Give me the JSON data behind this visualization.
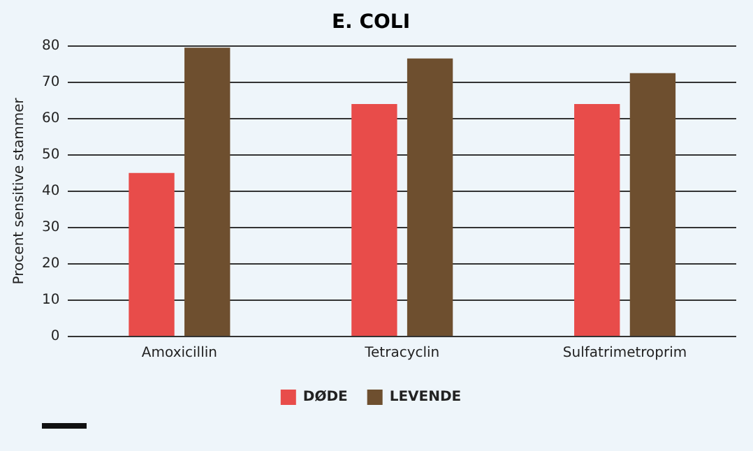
{
  "chart_data": {
    "type": "bar",
    "title": "E. COLI",
    "ylabel": "Procent sensitive stammer",
    "categories": [
      "Amoxicillin",
      "Tetracyclin",
      "Sulfatrimetroprim"
    ],
    "series": [
      {
        "name": "DØDE",
        "color": "#e84c4a",
        "values": [
          45,
          64,
          64
        ]
      },
      {
        "name": "LEVENDE",
        "color": "#6e4f2f",
        "values": [
          79.5,
          76.5,
          72.5
        ]
      }
    ],
    "ylim": [
      0,
      80
    ],
    "yticks": [
      0,
      10,
      20,
      30,
      40,
      50,
      60,
      70,
      80
    ],
    "grid": "y",
    "legend": "bottom"
  }
}
